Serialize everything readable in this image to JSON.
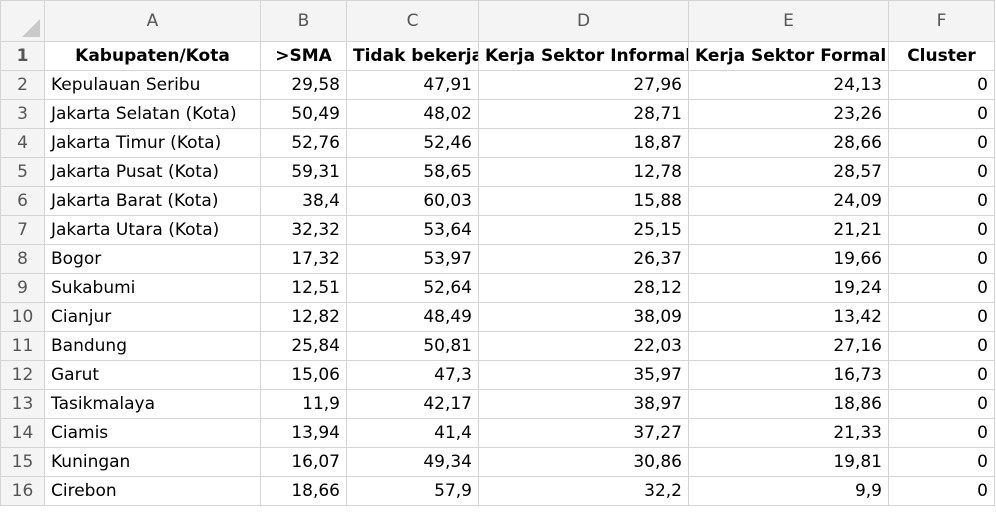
{
  "column_headers": [
    "A",
    "B",
    "C",
    "D",
    "E",
    "F"
  ],
  "header_row": {
    "row_number": "1",
    "cells": [
      "Kabupaten/Kota",
      ">SMA",
      "Tidak bekerja",
      "Kerja Sektor Informal",
      "Kerja Sektor Formal",
      "Cluster"
    ]
  },
  "rows": [
    {
      "n": "2",
      "a": "Kepulauan Seribu",
      "b": "29,58",
      "c": "47,91",
      "d": "27,96",
      "e": "24,13",
      "f": "0"
    },
    {
      "n": "3",
      "a": "Jakarta Selatan (Kota)",
      "b": "50,49",
      "c": "48,02",
      "d": "28,71",
      "e": "23,26",
      "f": "0"
    },
    {
      "n": "4",
      "a": "Jakarta Timur (Kota)",
      "b": "52,76",
      "c": "52,46",
      "d": "18,87",
      "e": "28,66",
      "f": "0"
    },
    {
      "n": "5",
      "a": "Jakarta Pusat (Kota)",
      "b": "59,31",
      "c": "58,65",
      "d": "12,78",
      "e": "28,57",
      "f": "0"
    },
    {
      "n": "6",
      "a": "Jakarta Barat (Kota)",
      "b": "38,4",
      "c": "60,03",
      "d": "15,88",
      "e": "24,09",
      "f": "0"
    },
    {
      "n": "7",
      "a": "Jakarta Utara (Kota)",
      "b": "32,32",
      "c": "53,64",
      "d": "25,15",
      "e": "21,21",
      "f": "0"
    },
    {
      "n": "8",
      "a": "Bogor",
      "b": "17,32",
      "c": "53,97",
      "d": "26,37",
      "e": "19,66",
      "f": "0"
    },
    {
      "n": "9",
      "a": "Sukabumi",
      "b": "12,51",
      "c": "52,64",
      "d": "28,12",
      "e": "19,24",
      "f": "0"
    },
    {
      "n": "10",
      "a": "Cianjur",
      "b": "12,82",
      "c": "48,49",
      "d": "38,09",
      "e": "13,42",
      "f": "0"
    },
    {
      "n": "11",
      "a": "Bandung",
      "b": "25,84",
      "c": "50,81",
      "d": "22,03",
      "e": "27,16",
      "f": "0"
    },
    {
      "n": "12",
      "a": "Garut",
      "b": "15,06",
      "c": "47,3",
      "d": "35,97",
      "e": "16,73",
      "f": "0"
    },
    {
      "n": "13",
      "a": "Tasikmalaya",
      "b": "11,9",
      "c": "42,17",
      "d": "38,97",
      "e": "18,86",
      "f": "0"
    },
    {
      "n": "14",
      "a": "Ciamis",
      "b": "13,94",
      "c": "41,4",
      "d": "37,27",
      "e": "21,33",
      "f": "0"
    },
    {
      "n": "15",
      "a": "Kuningan",
      "b": "16,07",
      "c": "49,34",
      "d": "30,86",
      "e": "19,81",
      "f": "0"
    },
    {
      "n": "16",
      "a": "Cirebon",
      "b": "18,66",
      "c": "57,9",
      "d": "32,2",
      "e": "9,9",
      "f": "0"
    }
  ]
}
